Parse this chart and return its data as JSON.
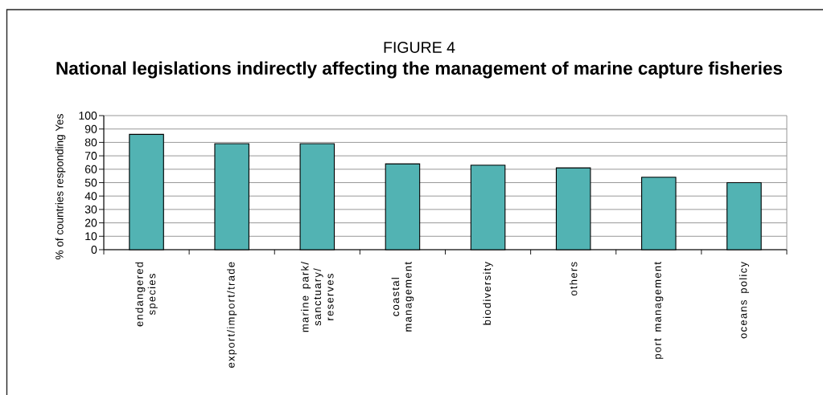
{
  "chart_data": {
    "type": "bar",
    "title": "FIGURE 4",
    "subtitle": "National legislations indirectly affecting the management of marine capture fisheries",
    "ylabel": "% of countries responding Yes",
    "categories": [
      "endangered species",
      "export/import/trade",
      "marine park/ sanctuary/ reserves",
      "coastal management",
      "biodiversity",
      "others",
      "port management",
      "oceans policy"
    ],
    "values": [
      86,
      79,
      79,
      64,
      63,
      61,
      54,
      50
    ],
    "color": "#52b3b3",
    "ylim": [
      0,
      100
    ],
    "yticks": [
      0,
      10,
      20,
      30,
      40,
      50,
      60,
      70,
      80,
      90,
      100
    ],
    "grid": "y"
  }
}
